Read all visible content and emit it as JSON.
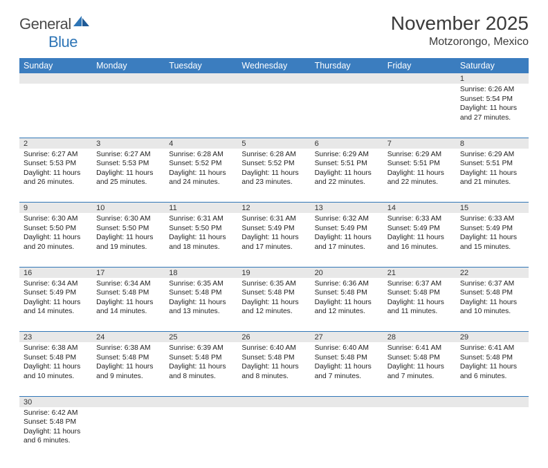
{
  "logo": {
    "text1": "General",
    "text2": "Blue"
  },
  "title": "November 2025",
  "location": "Motzorongo, Mexico",
  "colors": {
    "header_bg": "#3b7dbf",
    "header_text": "#ffffff",
    "daynum_bg": "#e8e8e8",
    "border": "#2e75b6",
    "logo_gray": "#4a4a4a",
    "logo_blue": "#2e75b6"
  },
  "weekdays": [
    "Sunday",
    "Monday",
    "Tuesday",
    "Wednesday",
    "Thursday",
    "Friday",
    "Saturday"
  ],
  "weeks": [
    {
      "nums": [
        "",
        "",
        "",
        "",
        "",
        "",
        "1"
      ],
      "cells": [
        null,
        null,
        null,
        null,
        null,
        null,
        {
          "sunrise": "6:26 AM",
          "sunset": "5:54 PM",
          "daylight": "11 hours and 27 minutes."
        }
      ]
    },
    {
      "nums": [
        "2",
        "3",
        "4",
        "5",
        "6",
        "7",
        "8"
      ],
      "cells": [
        {
          "sunrise": "6:27 AM",
          "sunset": "5:53 PM",
          "daylight": "11 hours and 26 minutes."
        },
        {
          "sunrise": "6:27 AM",
          "sunset": "5:53 PM",
          "daylight": "11 hours and 25 minutes."
        },
        {
          "sunrise": "6:28 AM",
          "sunset": "5:52 PM",
          "daylight": "11 hours and 24 minutes."
        },
        {
          "sunrise": "6:28 AM",
          "sunset": "5:52 PM",
          "daylight": "11 hours and 23 minutes."
        },
        {
          "sunrise": "6:29 AM",
          "sunset": "5:51 PM",
          "daylight": "11 hours and 22 minutes."
        },
        {
          "sunrise": "6:29 AM",
          "sunset": "5:51 PM",
          "daylight": "11 hours and 22 minutes."
        },
        {
          "sunrise": "6:29 AM",
          "sunset": "5:51 PM",
          "daylight": "11 hours and 21 minutes."
        }
      ]
    },
    {
      "nums": [
        "9",
        "10",
        "11",
        "12",
        "13",
        "14",
        "15"
      ],
      "cells": [
        {
          "sunrise": "6:30 AM",
          "sunset": "5:50 PM",
          "daylight": "11 hours and 20 minutes."
        },
        {
          "sunrise": "6:30 AM",
          "sunset": "5:50 PM",
          "daylight": "11 hours and 19 minutes."
        },
        {
          "sunrise": "6:31 AM",
          "sunset": "5:50 PM",
          "daylight": "11 hours and 18 minutes."
        },
        {
          "sunrise": "6:31 AM",
          "sunset": "5:49 PM",
          "daylight": "11 hours and 17 minutes."
        },
        {
          "sunrise": "6:32 AM",
          "sunset": "5:49 PM",
          "daylight": "11 hours and 17 minutes."
        },
        {
          "sunrise": "6:33 AM",
          "sunset": "5:49 PM",
          "daylight": "11 hours and 16 minutes."
        },
        {
          "sunrise": "6:33 AM",
          "sunset": "5:49 PM",
          "daylight": "11 hours and 15 minutes."
        }
      ]
    },
    {
      "nums": [
        "16",
        "17",
        "18",
        "19",
        "20",
        "21",
        "22"
      ],
      "cells": [
        {
          "sunrise": "6:34 AM",
          "sunset": "5:49 PM",
          "daylight": "11 hours and 14 minutes."
        },
        {
          "sunrise": "6:34 AM",
          "sunset": "5:48 PM",
          "daylight": "11 hours and 14 minutes."
        },
        {
          "sunrise": "6:35 AM",
          "sunset": "5:48 PM",
          "daylight": "11 hours and 13 minutes."
        },
        {
          "sunrise": "6:35 AM",
          "sunset": "5:48 PM",
          "daylight": "11 hours and 12 minutes."
        },
        {
          "sunrise": "6:36 AM",
          "sunset": "5:48 PM",
          "daylight": "11 hours and 12 minutes."
        },
        {
          "sunrise": "6:37 AM",
          "sunset": "5:48 PM",
          "daylight": "11 hours and 11 minutes."
        },
        {
          "sunrise": "6:37 AM",
          "sunset": "5:48 PM",
          "daylight": "11 hours and 10 minutes."
        }
      ]
    },
    {
      "nums": [
        "23",
        "24",
        "25",
        "26",
        "27",
        "28",
        "29"
      ],
      "cells": [
        {
          "sunrise": "6:38 AM",
          "sunset": "5:48 PM",
          "daylight": "11 hours and 10 minutes."
        },
        {
          "sunrise": "6:38 AM",
          "sunset": "5:48 PM",
          "daylight": "11 hours and 9 minutes."
        },
        {
          "sunrise": "6:39 AM",
          "sunset": "5:48 PM",
          "daylight": "11 hours and 8 minutes."
        },
        {
          "sunrise": "6:40 AM",
          "sunset": "5:48 PM",
          "daylight": "11 hours and 8 minutes."
        },
        {
          "sunrise": "6:40 AM",
          "sunset": "5:48 PM",
          "daylight": "11 hours and 7 minutes."
        },
        {
          "sunrise": "6:41 AM",
          "sunset": "5:48 PM",
          "daylight": "11 hours and 7 minutes."
        },
        {
          "sunrise": "6:41 AM",
          "sunset": "5:48 PM",
          "daylight": "11 hours and 6 minutes."
        }
      ]
    },
    {
      "nums": [
        "30",
        "",
        "",
        "",
        "",
        "",
        ""
      ],
      "cells": [
        {
          "sunrise": "6:42 AM",
          "sunset": "5:48 PM",
          "daylight": "11 hours and 6 minutes."
        },
        null,
        null,
        null,
        null,
        null,
        null
      ]
    }
  ],
  "labels": {
    "sunrise": "Sunrise:",
    "sunset": "Sunset:",
    "daylight": "Daylight:"
  }
}
